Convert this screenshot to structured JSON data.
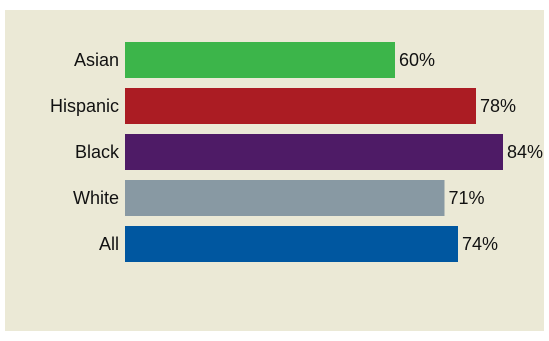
{
  "chart_data": {
    "type": "bar",
    "orientation": "horizontal",
    "title": "",
    "xlabel": "",
    "ylabel": "",
    "categories": [
      "Asian",
      "Hispanic",
      "Black",
      "White",
      "All"
    ],
    "values": [
      60,
      78,
      84,
      71,
      74
    ],
    "value_labels": [
      "60%",
      "78%",
      "84%",
      "71%",
      "74%"
    ],
    "colors": [
      "#3cb54a",
      "#ab1c23",
      "#4e1b66",
      "#8899a3",
      "#0057a0"
    ],
    "background": "#ebe9d6",
    "grid": false,
    "legend": "none"
  }
}
